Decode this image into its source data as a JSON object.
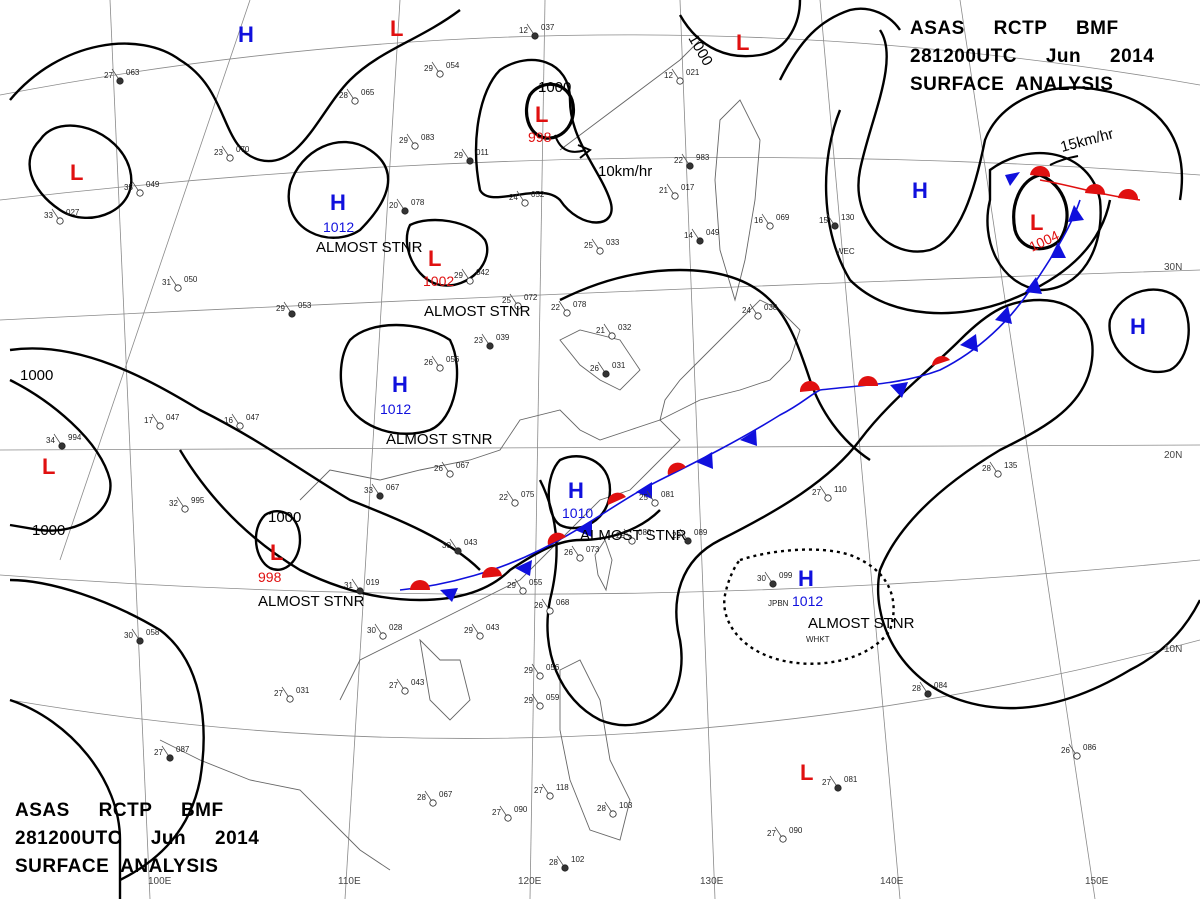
{
  "titles": {
    "top_right": [
      "ASAS     RCTP     BMF",
      "281200UTC     Jun     2014",
      "SURFACE  ANALYSIS"
    ],
    "bottom_left": [
      "ASAS     RCTP     BMF",
      "281200UTC     Jun     2014",
      "SURFACE  ANALYSIS"
    ]
  },
  "colors": {
    "high": "#1010dd",
    "low": "#e01010",
    "isobar": "#000000",
    "front_warm": "#e01010",
    "front_cold": "#1010dd"
  },
  "longitude_labels": [
    "100E",
    "110E",
    "120E",
    "130E",
    "140E",
    "150E"
  ],
  "latitude_labels": [
    "30N",
    "20N",
    "10N"
  ],
  "systems": [
    {
      "symbol": "H",
      "type": "high",
      "pressure": ""
    },
    {
      "symbol": "L",
      "type": "low",
      "pressure": ""
    },
    {
      "symbol": "L",
      "type": "low",
      "pressure": "998",
      "motion": "10km/hr"
    },
    {
      "symbol": "L",
      "type": "low",
      "pressure": ""
    },
    {
      "symbol": "L",
      "type": "low",
      "pressure": ""
    },
    {
      "symbol": "H",
      "type": "high",
      "pressure": "1012",
      "note": "ALMOST STNR"
    },
    {
      "symbol": "L",
      "type": "low",
      "pressure": "1002",
      "note": "ALMOST STNR"
    },
    {
      "symbol": "H",
      "type": "high",
      "pressure": "1012",
      "note": "ALMOST STNR"
    },
    {
      "symbol": "L",
      "type": "low",
      "pressure": ""
    },
    {
      "symbol": "L",
      "type": "low",
      "pressure": "998",
      "note": "ALMOST STNR"
    },
    {
      "symbol": "H",
      "type": "high",
      "pressure": "1010",
      "note": "ALMOST STNR"
    },
    {
      "symbol": "H",
      "type": "high",
      "pressure": ""
    },
    {
      "symbol": "L",
      "type": "low",
      "pressure": "1004",
      "motion": "15km/hr"
    },
    {
      "symbol": "H",
      "type": "high",
      "pressure": ""
    },
    {
      "symbol": "H",
      "type": "high",
      "pressure": "1012",
      "note": "ALMOST STNR"
    },
    {
      "symbol": "L",
      "type": "low",
      "pressure": ""
    }
  ],
  "isobar_labels": [
    "1000",
    "1000",
    "1000",
    "1000",
    "1000"
  ],
  "stations": [
    {
      "t": "27",
      "p": "063"
    },
    {
      "t": "28",
      "p": "065"
    },
    {
      "t": "29",
      "p": "054"
    },
    {
      "t": "12",
      "p": "037"
    },
    {
      "t": "29",
      "p": "083"
    },
    {
      "t": "23",
      "p": "070"
    },
    {
      "t": "29",
      "p": "011"
    },
    {
      "t": "35",
      "p": "049"
    },
    {
      "t": "33",
      "p": "027"
    },
    {
      "t": "20",
      "p": "078"
    },
    {
      "t": "29",
      "p": "042"
    },
    {
      "t": "24",
      "p": "052"
    },
    {
      "t": "22",
      "p": "983"
    },
    {
      "t": "12",
      "p": "021"
    },
    {
      "t": "21",
      "p": "017"
    },
    {
      "t": "14",
      "p": "049"
    },
    {
      "t": "25",
      "p": "033"
    },
    {
      "t": "31",
      "p": "050"
    },
    {
      "t": "29",
      "p": "053"
    },
    {
      "t": "25",
      "p": "072"
    },
    {
      "t": "22",
      "p": "078"
    },
    {
      "t": "23",
      "p": "039"
    },
    {
      "t": "26",
      "p": "056"
    },
    {
      "t": "21",
      "p": "032"
    },
    {
      "t": "26",
      "p": "031"
    },
    {
      "t": "24",
      "p": "038"
    },
    {
      "t": "16",
      "p": "069"
    },
    {
      "t": "15",
      "p": "130"
    },
    {
      "t": "17",
      "p": "047"
    },
    {
      "t": "16",
      "p": "047"
    },
    {
      "t": "34",
      "p": "994"
    },
    {
      "t": "32",
      "p": "995"
    },
    {
      "t": "26",
      "p": "067"
    },
    {
      "t": "33",
      "p": "067"
    },
    {
      "t": "22",
      "p": "075"
    },
    {
      "t": "25",
      "p": "081"
    },
    {
      "t": "29",
      "p": "089"
    },
    {
      "t": "27",
      "p": "110"
    },
    {
      "t": "28",
      "p": "135"
    },
    {
      "t": "30",
      "p": "043"
    },
    {
      "t": "29",
      "p": "080"
    },
    {
      "t": "26",
      "p": "073"
    },
    {
      "t": "31",
      "p": "019"
    },
    {
      "t": "29",
      "p": "055"
    },
    {
      "t": "26",
      "p": "068"
    },
    {
      "t": "30",
      "p": "058"
    },
    {
      "t": "30",
      "p": "028"
    },
    {
      "t": "29",
      "p": "043"
    },
    {
      "t": "30",
      "p": "099"
    },
    {
      "t": "27",
      "p": "031"
    },
    {
      "t": "27",
      "p": "043"
    },
    {
      "t": "28",
      "p": "084"
    },
    {
      "t": "29",
      "p": "056"
    },
    {
      "t": "29",
      "p": "059"
    },
    {
      "t": "27",
      "p": "087"
    },
    {
      "t": "28",
      "p": "067"
    },
    {
      "t": "27",
      "p": "090"
    },
    {
      "t": "27",
      "p": "081"
    },
    {
      "t": "26",
      "p": "086"
    },
    {
      "t": "27",
      "p": "090"
    },
    {
      "t": "28",
      "p": "102"
    },
    {
      "t": "28",
      "p": "103"
    },
    {
      "t": "27",
      "p": "118"
    }
  ],
  "station_codes": [
    "WEC",
    "JPBN",
    "WHKT"
  ]
}
